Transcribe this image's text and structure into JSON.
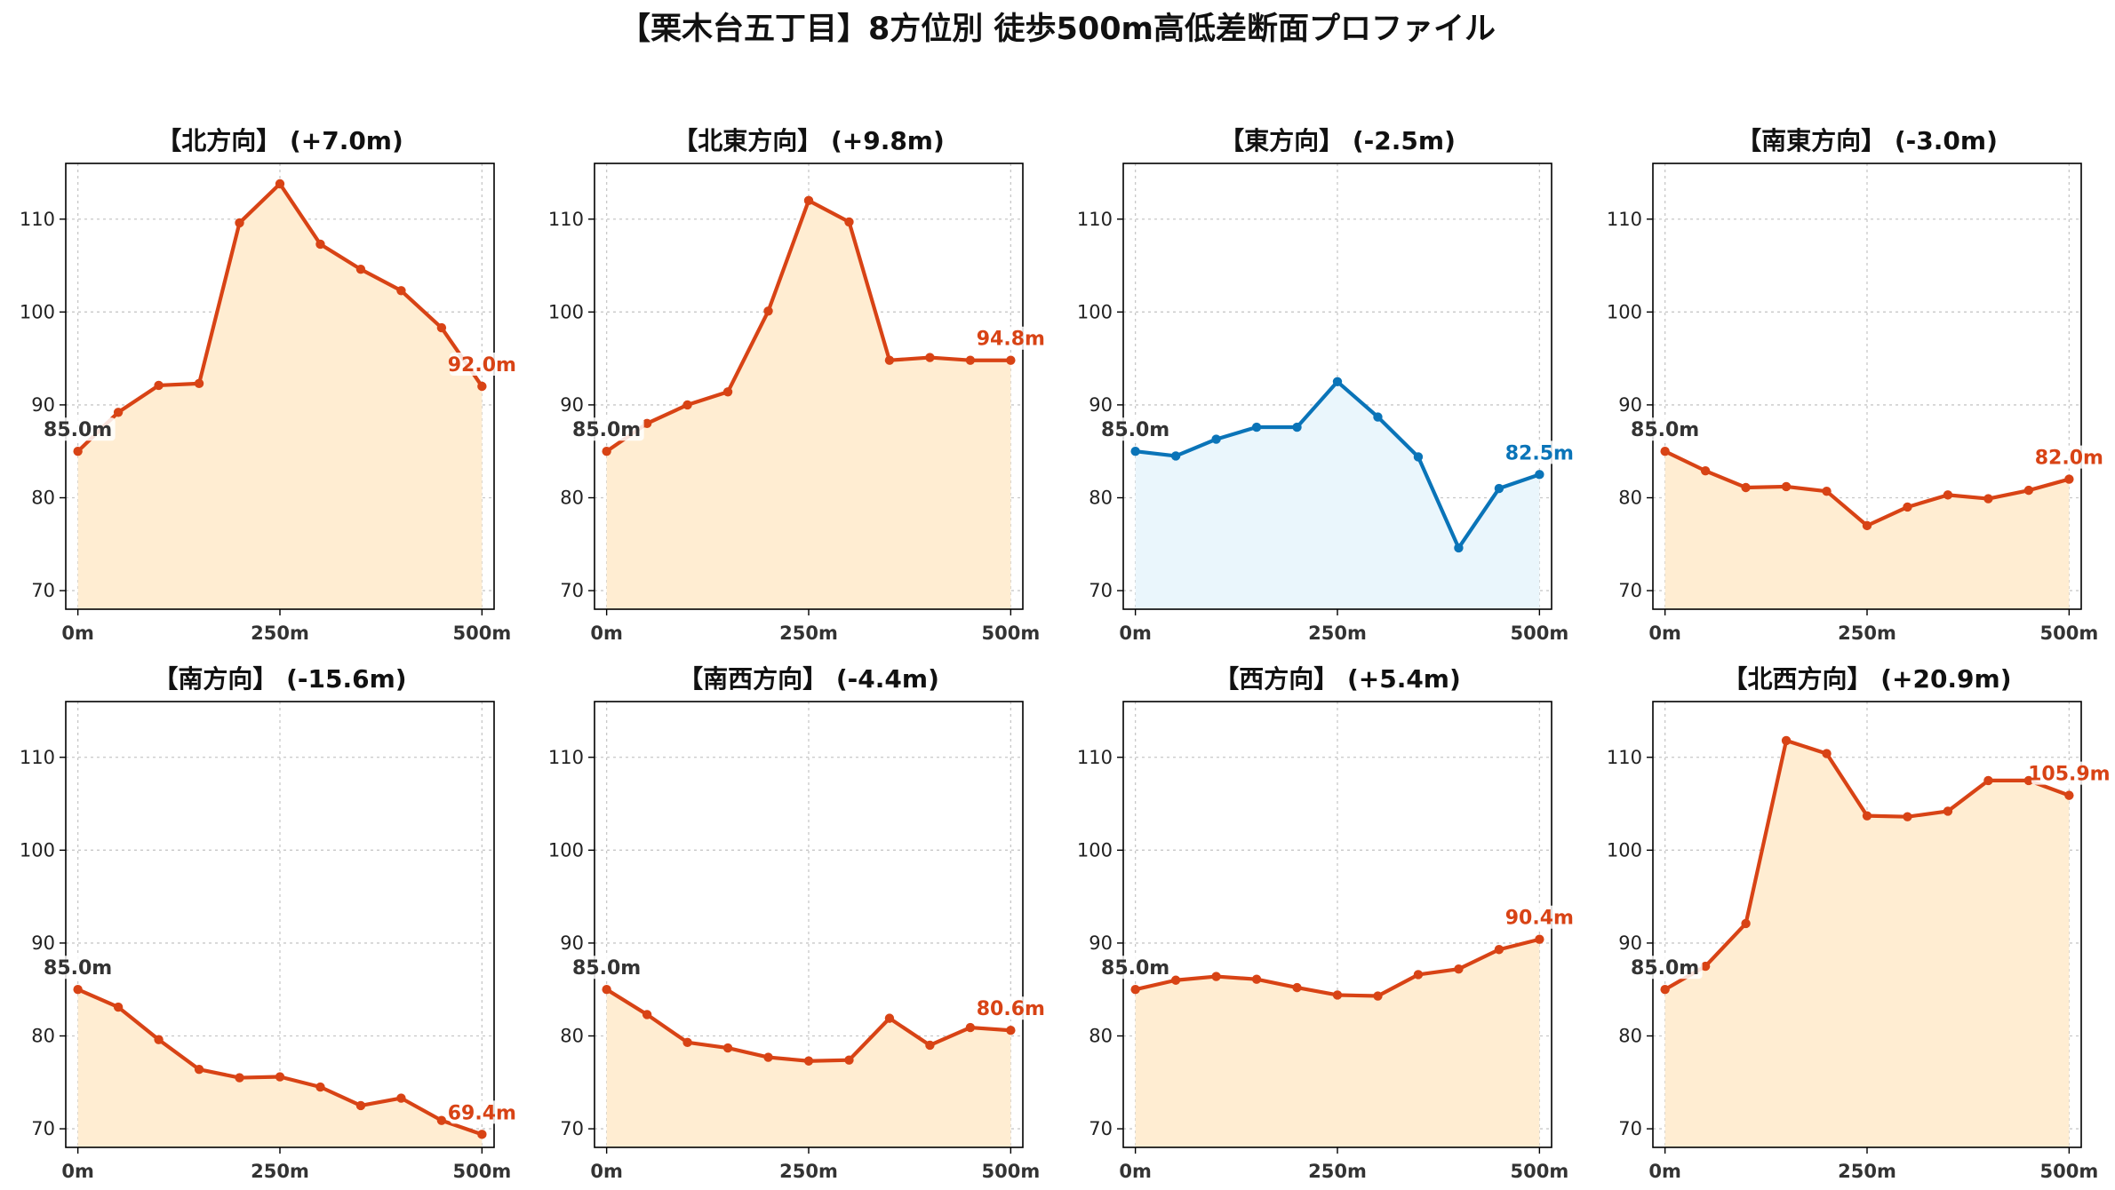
{
  "figure_title": "【栗木台五丁目】8方位別 徒歩500m高低差断面プロファイル",
  "colors": {
    "up_line": "#d84315",
    "up_fill": "#ffedd2",
    "down_line": "#0a74b8",
    "down_fill": "#eaf6fc",
    "start_label": "#333333"
  },
  "chart_data": [
    {
      "type": "area",
      "title": "【北方向】 (+7.0m)",
      "x": [
        0,
        50,
        100,
        150,
        200,
        250,
        300,
        350,
        400,
        450,
        500
      ],
      "y": [
        85.0,
        89.2,
        92.1,
        92.3,
        109.6,
        113.8,
        107.3,
        104.6,
        102.3,
        98.3,
        92.0
      ],
      "x_ticks": [
        "0m",
        "250m",
        "500m"
      ],
      "y_ticks": [
        "70",
        "80",
        "90",
        "100",
        "110"
      ],
      "xlim": [
        -15,
        515
      ],
      "ylim": [
        68,
        116
      ],
      "start_label": "85.0m",
      "end_label": "92.0m",
      "trend": "up",
      "grid": true
    },
    {
      "type": "area",
      "title": "【北東方向】 (+9.8m)",
      "x": [
        0,
        50,
        100,
        150,
        200,
        250,
        300,
        350,
        400,
        450,
        500
      ],
      "y": [
        85.0,
        88.0,
        90.0,
        91.4,
        100.1,
        112.0,
        109.7,
        94.8,
        95.1,
        94.8,
        94.8
      ],
      "x_ticks": [
        "0m",
        "250m",
        "500m"
      ],
      "y_ticks": [
        "70",
        "80",
        "90",
        "100",
        "110"
      ],
      "xlim": [
        -15,
        515
      ],
      "ylim": [
        68,
        116
      ],
      "start_label": "85.0m",
      "end_label": "94.8m",
      "trend": "up",
      "grid": true
    },
    {
      "type": "area",
      "title": "【東方向】 (-2.5m)",
      "x": [
        0,
        50,
        100,
        150,
        200,
        250,
        300,
        350,
        400,
        450,
        500
      ],
      "y": [
        85.0,
        84.5,
        86.3,
        87.6,
        87.6,
        92.5,
        88.7,
        84.4,
        74.6,
        81.0,
        82.5
      ],
      "x_ticks": [
        "0m",
        "250m",
        "500m"
      ],
      "y_ticks": [
        "70",
        "80",
        "90",
        "100",
        "110"
      ],
      "xlim": [
        -15,
        515
      ],
      "ylim": [
        68,
        116
      ],
      "start_label": "85.0m",
      "end_label": "82.5m",
      "trend": "down",
      "grid": true
    },
    {
      "type": "area",
      "title": "【南東方向】 (-3.0m)",
      "x": [
        0,
        50,
        100,
        150,
        200,
        250,
        300,
        350,
        400,
        450,
        500
      ],
      "y": [
        85.0,
        82.9,
        81.1,
        81.2,
        80.7,
        77.0,
        79.0,
        80.3,
        79.9,
        80.8,
        82.0
      ],
      "x_ticks": [
        "0m",
        "250m",
        "500m"
      ],
      "y_ticks": [
        "70",
        "80",
        "90",
        "100",
        "110"
      ],
      "xlim": [
        -15,
        515
      ],
      "ylim": [
        68,
        116
      ],
      "start_label": "85.0m",
      "end_label": "82.0m",
      "trend": "up",
      "grid": true
    },
    {
      "type": "area",
      "title": "【南方向】 (-15.6m)",
      "x": [
        0,
        50,
        100,
        150,
        200,
        250,
        300,
        350,
        400,
        450,
        500
      ],
      "y": [
        85.0,
        83.1,
        79.6,
        76.4,
        75.5,
        75.6,
        74.5,
        72.5,
        73.3,
        70.9,
        69.4
      ],
      "x_ticks": [
        "0m",
        "250m",
        "500m"
      ],
      "y_ticks": [
        "70",
        "80",
        "90",
        "100",
        "110"
      ],
      "xlim": [
        -15,
        515
      ],
      "ylim": [
        68,
        116
      ],
      "start_label": "85.0m",
      "end_label": "69.4m",
      "trend": "up",
      "grid": true
    },
    {
      "type": "area",
      "title": "【南西方向】 (-4.4m)",
      "x": [
        0,
        50,
        100,
        150,
        200,
        250,
        300,
        350,
        400,
        450,
        500
      ],
      "y": [
        85.0,
        82.3,
        79.3,
        78.7,
        77.7,
        77.3,
        77.4,
        81.9,
        79.0,
        80.9,
        80.6
      ],
      "x_ticks": [
        "0m",
        "250m",
        "500m"
      ],
      "y_ticks": [
        "70",
        "80",
        "90",
        "100",
        "110"
      ],
      "xlim": [
        -15,
        515
      ],
      "ylim": [
        68,
        116
      ],
      "start_label": "85.0m",
      "end_label": "80.6m",
      "trend": "up",
      "grid": true
    },
    {
      "type": "area",
      "title": "【西方向】 (+5.4m)",
      "x": [
        0,
        50,
        100,
        150,
        200,
        250,
        300,
        350,
        400,
        450,
        500
      ],
      "y": [
        85.0,
        86.0,
        86.4,
        86.1,
        85.2,
        84.4,
        84.3,
        86.6,
        87.2,
        89.3,
        90.4
      ],
      "x_ticks": [
        "0m",
        "250m",
        "500m"
      ],
      "y_ticks": [
        "70",
        "80",
        "90",
        "100",
        "110"
      ],
      "xlim": [
        -15,
        515
      ],
      "ylim": [
        68,
        116
      ],
      "start_label": "85.0m",
      "end_label": "90.4m",
      "trend": "up",
      "grid": true
    },
    {
      "type": "area",
      "title": "【北西方向】 (+20.9m)",
      "x": [
        0,
        50,
        100,
        150,
        200,
        250,
        300,
        350,
        400,
        450,
        500
      ],
      "y": [
        85.0,
        87.5,
        92.1,
        111.8,
        110.4,
        103.7,
        103.6,
        104.2,
        107.5,
        107.5,
        105.9
      ],
      "x_ticks": [
        "0m",
        "250m",
        "500m"
      ],
      "y_ticks": [
        "70",
        "80",
        "90",
        "100",
        "110"
      ],
      "xlim": [
        -15,
        515
      ],
      "ylim": [
        68,
        116
      ],
      "start_label": "85.0m",
      "end_label": "105.9m",
      "trend": "up",
      "grid": true
    }
  ]
}
